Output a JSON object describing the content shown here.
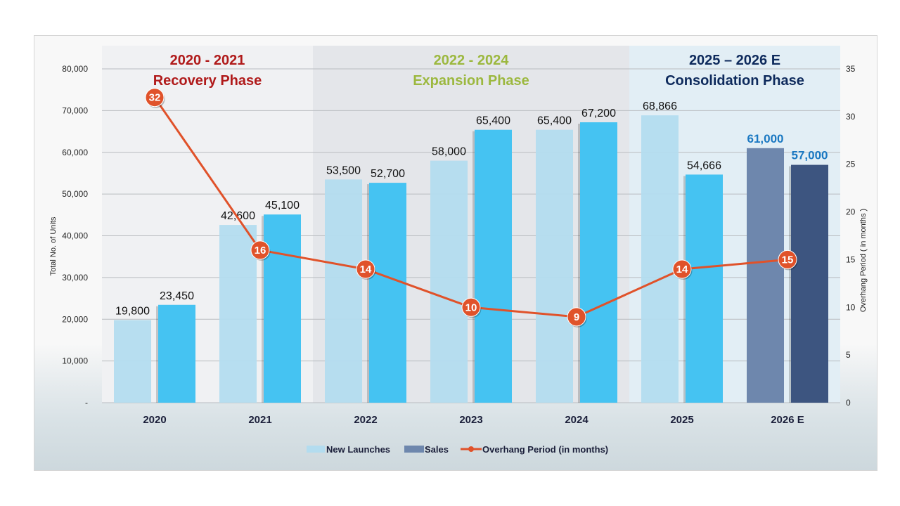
{
  "chart_data": {
    "type": "bar",
    "title": "",
    "categories": [
      "2020",
      "2021",
      "2022",
      "2023",
      "2024",
      "2025",
      "2026 E"
    ],
    "series": [
      {
        "name": "New Launches",
        "kind": "bar",
        "axis": "left",
        "values": [
          19800,
          42600,
          53500,
          58000,
          65400,
          68866,
          61000
        ],
        "labels": [
          "19,800",
          "42,600",
          "53,500",
          "58,000",
          "65,400",
          "68,866",
          "61,000"
        ]
      },
      {
        "name": "Sales",
        "kind": "bar",
        "axis": "left",
        "values": [
          23450,
          45100,
          52700,
          65400,
          67200,
          54666,
          57000
        ],
        "labels": [
          "23,450",
          "45,100",
          "52,700",
          "65,400",
          "67,200",
          "54,666",
          "57,000"
        ]
      },
      {
        "name": "Overhang Period (in months)",
        "kind": "line",
        "axis": "right",
        "values": [
          32,
          16,
          14,
          10,
          9,
          14,
          15
        ]
      }
    ],
    "estimate_categories": [
      "2026 E"
    ],
    "ylabel": "Total No. of Units",
    "ylabel_right": "Overhang Period ( in months )",
    "ylim": [
      0,
      80000
    ],
    "ylim_right": [
      0,
      35
    ],
    "yticks": [
      "-",
      "10,000",
      "20,000",
      "30,000",
      "40,000",
      "50,000",
      "60,000",
      "70,000",
      "80,000"
    ],
    "yticks_right": [
      "0",
      "5",
      "10",
      "15",
      "20",
      "25",
      "30",
      "35"
    ],
    "grid": true,
    "legend": {
      "position": "bottom",
      "entries": [
        "New Launches",
        "Sales",
        "Overhang Period (in months)"
      ]
    },
    "phases": [
      {
        "years": "2020 - 2021",
        "name": "Recovery Phase",
        "from": "2020",
        "to": "2021",
        "color": "#b01a1a",
        "bg": "#f0f1f3"
      },
      {
        "years": "2022 - 2024",
        "name": "Expansion Phase",
        "from": "2022",
        "to": "2024",
        "color": "#9cb83f",
        "bg": "#e4e6ea"
      },
      {
        "years": "2025 – 2026 E",
        "name": "Consolidation Phase",
        "from": "2025",
        "to": "2026 E",
        "color": "#0e2a5c",
        "bg": "#e2eef5"
      }
    ],
    "colors": {
      "new_launches": "#b3dcef",
      "sales": "#45c3f2",
      "new_launches_estimate": "#6e87ad",
      "sales_estimate": "#3d5580",
      "overhang_line": "#e0522a",
      "emphasis_label": "#1a78c2"
    }
  }
}
